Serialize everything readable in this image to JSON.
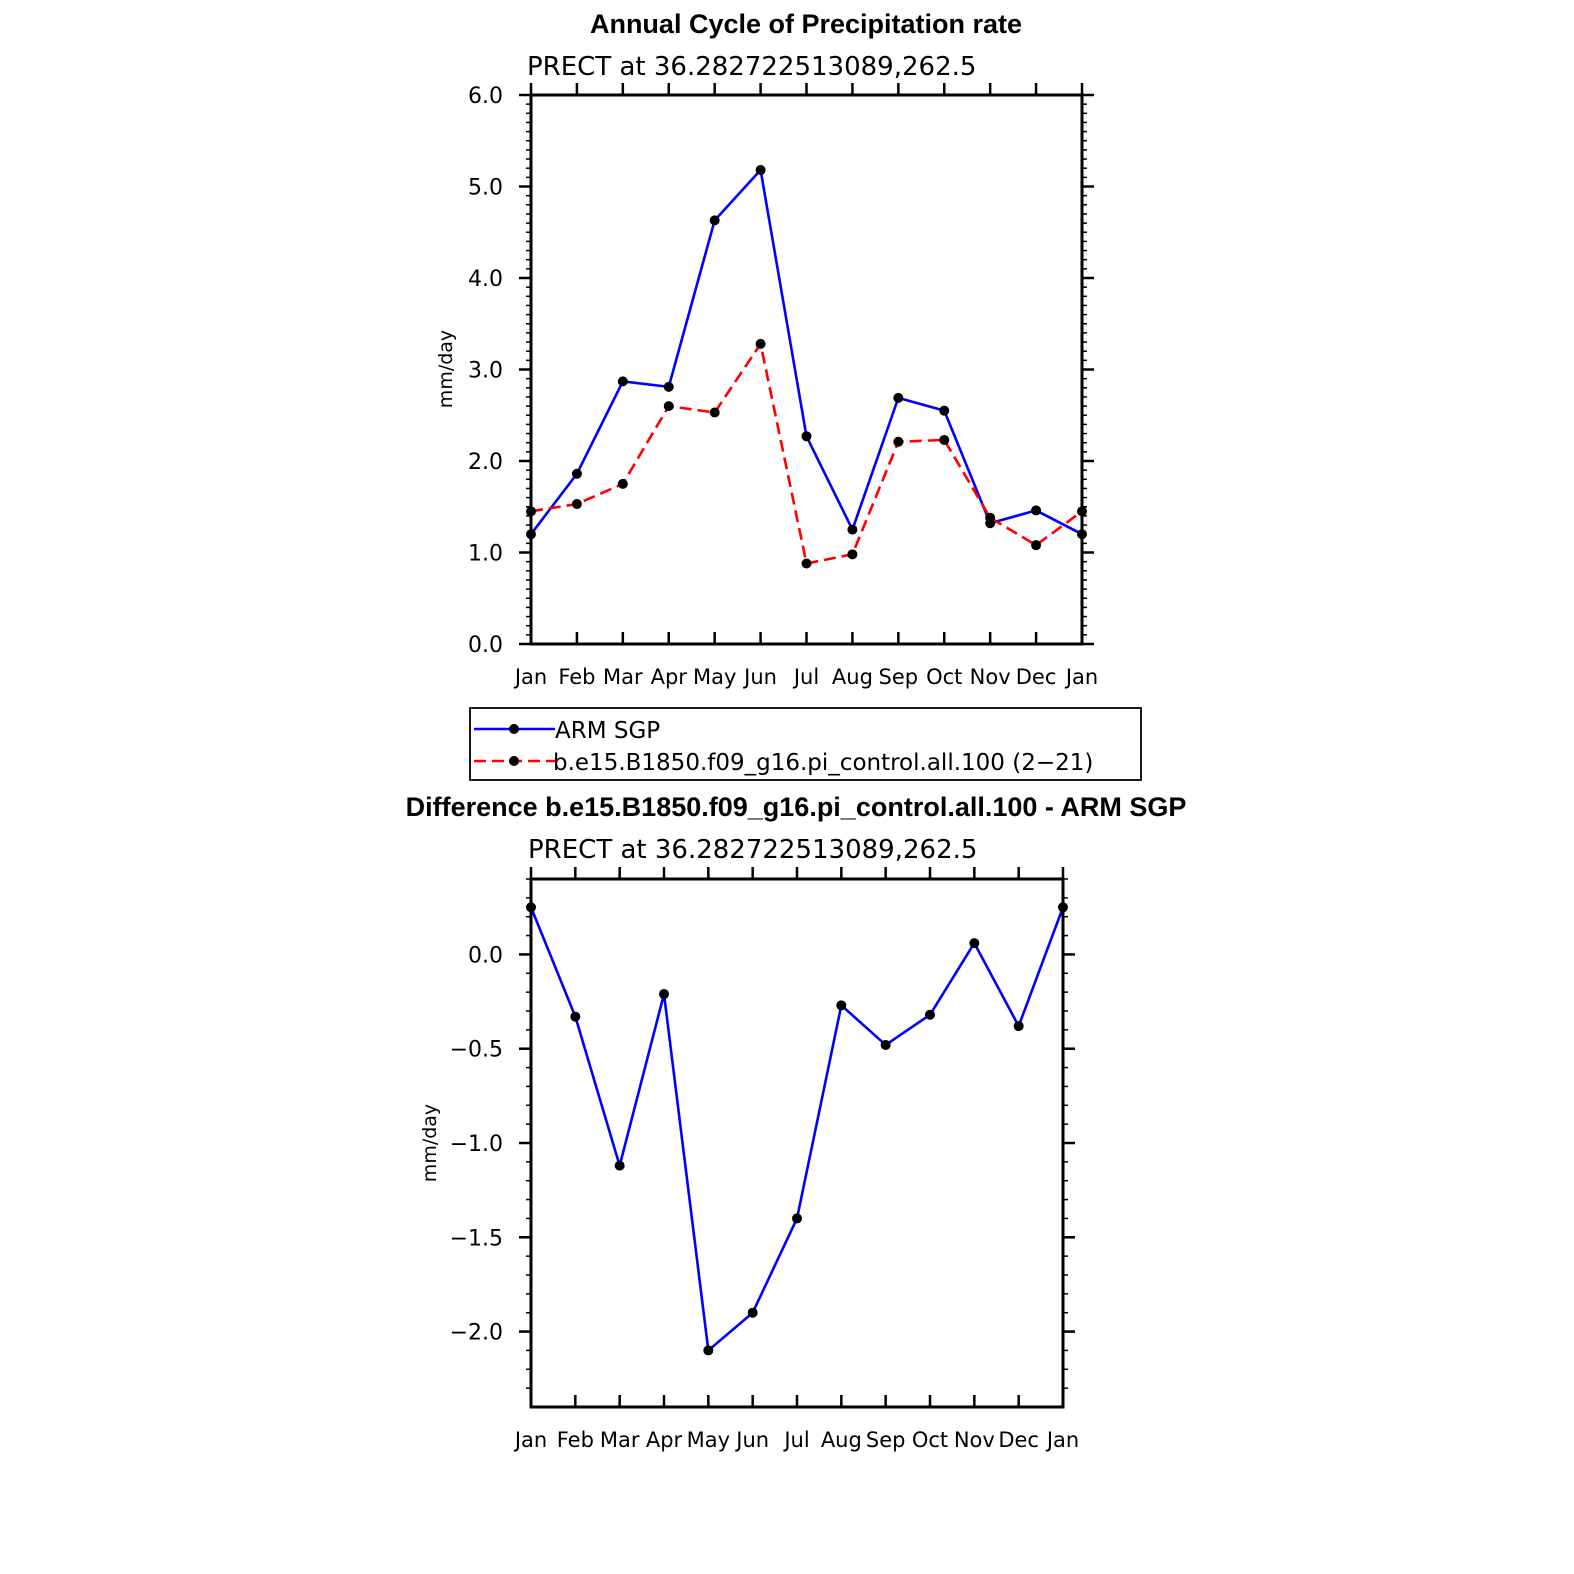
{
  "colors": {
    "obs": "#0000ff",
    "model": "#ff0000",
    "marker": "#000000"
  },
  "chart_data": [
    {
      "type": "line",
      "title": "Annual Cycle of Precipitation rate",
      "subtitle": "PRECT at 36.282722513089,262.5",
      "ylabel": "mm/day",
      "ylim": [
        0,
        6
      ],
      "yticks": [
        {
          "value": 0,
          "label": "0.0"
        },
        {
          "value": 1,
          "label": "1.0"
        },
        {
          "value": 2,
          "label": "2.0"
        },
        {
          "value": 3,
          "label": "3.0"
        },
        {
          "value": 4,
          "label": "4.0"
        },
        {
          "value": 5,
          "label": "5.0"
        },
        {
          "value": 6,
          "label": "6.0"
        }
      ],
      "categories": [
        "Jan",
        "Feb",
        "Mar",
        "Apr",
        "May",
        "Jun",
        "Jul",
        "Aug",
        "Sep",
        "Oct",
        "Nov",
        "Dec",
        "Jan"
      ],
      "series": [
        {
          "name": "ARM SGP",
          "style": "solid",
          "color": "#0000ff",
          "values": [
            1.2,
            1.86,
            2.87,
            2.81,
            4.63,
            5.18,
            2.27,
            1.25,
            2.69,
            2.55,
            1.32,
            1.46,
            1.2
          ]
        },
        {
          "name": "b.e15.B1850.f09_g16.pi_control.all.100 (2−21)",
          "style": "dashed",
          "color": "#ff0000",
          "values": [
            1.45,
            1.53,
            1.75,
            2.6,
            2.53,
            3.28,
            0.88,
            0.98,
            2.21,
            2.23,
            1.38,
            1.08,
            1.45
          ]
        }
      ],
      "legend": {
        "position": "below",
        "entries": [
          "ARM SGP",
          "b.e15.B1850.f09_g16.pi_control.all.100 (2−21)"
        ]
      }
    },
    {
      "type": "line",
      "title": "Difference b.e15.B1850.f09_g16.pi_control.all.100 - ARM SGP",
      "subtitle": "PRECT at 36.282722513089,262.5",
      "ylabel": "mm/day",
      "ylim": [
        -2.4,
        0.4
      ],
      "yticks": [
        {
          "value": 0,
          "label": "0.0"
        },
        {
          "value": -0.5,
          "label": "−0.5"
        },
        {
          "value": -1,
          "label": "−1.0"
        },
        {
          "value": -1.5,
          "label": "−1.5"
        },
        {
          "value": -2,
          "label": "−2.0"
        }
      ],
      "categories": [
        "Jan",
        "Feb",
        "Mar",
        "Apr",
        "May",
        "Jun",
        "Jul",
        "Aug",
        "Sep",
        "Oct",
        "Nov",
        "Dec",
        "Jan"
      ],
      "series": [
        {
          "name": "Difference",
          "style": "solid",
          "color": "#0000ff",
          "values": [
            0.25,
            -0.33,
            -1.12,
            -0.21,
            -2.1,
            -1.9,
            -1.4,
            -0.27,
            -0.48,
            -0.32,
            0.06,
            -0.38,
            0.25
          ]
        }
      ]
    }
  ]
}
